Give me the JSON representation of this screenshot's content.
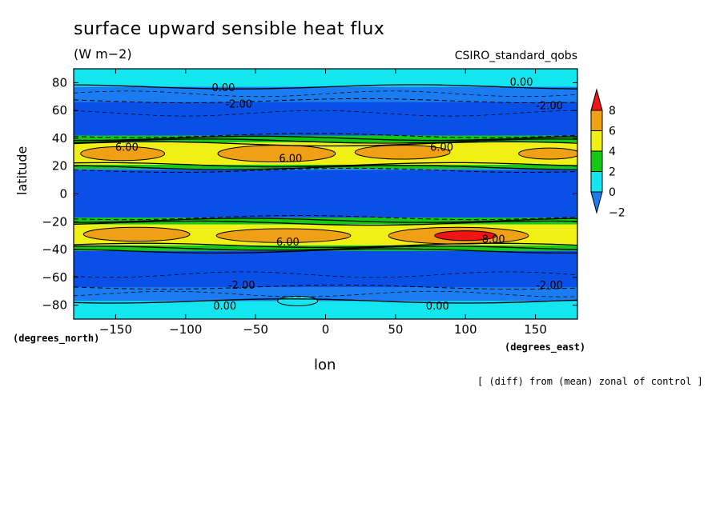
{
  "chart_data": {
    "type": "contour",
    "title": "surface upward sensible heat flux",
    "units": "(W m−2)",
    "model_label": "CSIRO_standard_qobs",
    "xlabel": "lon",
    "ylabel": "latitude",
    "x_unit_label": "(degrees_east)",
    "y_unit_label": "(degrees_north)",
    "footnote": "[ (diff) from (mean) zonal of control ]",
    "xlim": [
      -180,
      180
    ],
    "ylim": [
      -90,
      90
    ],
    "x_ticks": [
      -150,
      -100,
      -50,
      0,
      50,
      100,
      150
    ],
    "x_tick_labels": [
      "−150",
      "−100",
      "−50",
      "0",
      "50",
      "100",
      "150"
    ],
    "y_ticks": [
      -80,
      -60,
      -40,
      -20,
      0,
      20,
      40,
      60,
      80
    ],
    "y_tick_labels": [
      "−80",
      "−60",
      "−40",
      "−20",
      "0",
      "20",
      "40",
      "60",
      "80"
    ],
    "colorbar": {
      "levels": [
        -2,
        0,
        2,
        4,
        6,
        8
      ],
      "labels": [
        "−2",
        "0",
        "2",
        "4",
        "6",
        "8"
      ],
      "colors": [
        "#1a7cf0",
        "#14e6f0",
        "#14c814",
        "#f0f014",
        "#f0a014",
        "#f01414"
      ]
    },
    "contour_labels": [
      {
        "text": "0.00",
        "lon": -73,
        "lat": 76
      },
      {
        "text": "0.00",
        "lon": 140,
        "lat": 80
      },
      {
        "text": "-2.00",
        "lon": -62,
        "lat": 64
      },
      {
        "text": "-2.00",
        "lon": 160,
        "lat": 63
      },
      {
        "text": "6.00",
        "lon": -142,
        "lat": 33
      },
      {
        "text": "6.00",
        "lon": -25,
        "lat": 25
      },
      {
        "text": "6.00",
        "lon": 83,
        "lat": 33
      },
      {
        "text": "8.00",
        "lon": 120,
        "lat": -33
      },
      {
        "text": "6.00",
        "lon": -27,
        "lat": -35
      },
      {
        "text": "-2.00",
        "lon": -60,
        "lat": -66
      },
      {
        "text": "-2.00",
        "lon": 160,
        "lat": -66
      },
      {
        "text": "0.00",
        "lon": 80,
        "lat": -81
      },
      {
        "text": "0.00",
        "lon": -72,
        "lat": -81
      }
    ]
  }
}
